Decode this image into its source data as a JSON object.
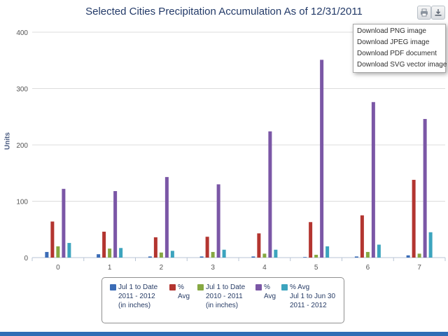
{
  "toolbar": {
    "print_icon": "printer-icon",
    "export_icon": "download-icon"
  },
  "export_menu": {
    "items": [
      "Download PNG image",
      "Download JPEG image",
      "Download PDF document",
      "Download SVG vector image"
    ]
  },
  "chart_data": {
    "type": "bar",
    "title": "Selected Cities Precipitation Accumulation As of 12/31/2011",
    "xlabel": "",
    "ylabel": "Units",
    "ylim": [
      0,
      400
    ],
    "yticks": [
      0,
      100,
      200,
      300,
      400
    ],
    "grid": true,
    "legend_position": "bottom",
    "categories": [
      "0",
      "1",
      "2",
      "3",
      "4",
      "5",
      "6",
      "7"
    ],
    "series": [
      {
        "name_lines": [
          "Jul 1 to Date",
          "2011 - 2012",
          "(in inches)"
        ],
        "color": "#3b6cb6",
        "values": [
          10,
          6,
          2,
          2,
          2,
          1,
          2,
          4
        ]
      },
      {
        "name_lines": [
          "%",
          "Avg"
        ],
        "color": "#b33530",
        "values": [
          64,
          46,
          36,
          37,
          43,
          63,
          75,
          138
        ]
      },
      {
        "name_lines": [
          "Jul 1 to Date",
          "2010 - 2011",
          "(in inches)"
        ],
        "color": "#86a842",
        "values": [
          20,
          16,
          9,
          10,
          7,
          5,
          10,
          7
        ]
      },
      {
        "name_lines": [
          "%",
          "Avg"
        ],
        "color": "#7b57a6",
        "values": [
          122,
          118,
          143,
          130,
          224,
          351,
          276,
          246
        ]
      },
      {
        "name_lines": [
          "% Avg",
          "Jul 1 to Jun 30",
          "2011 - 2012"
        ],
        "color": "#3ca4be",
        "values": [
          26,
          17,
          12,
          14,
          14,
          20,
          23,
          45
        ]
      }
    ]
  }
}
